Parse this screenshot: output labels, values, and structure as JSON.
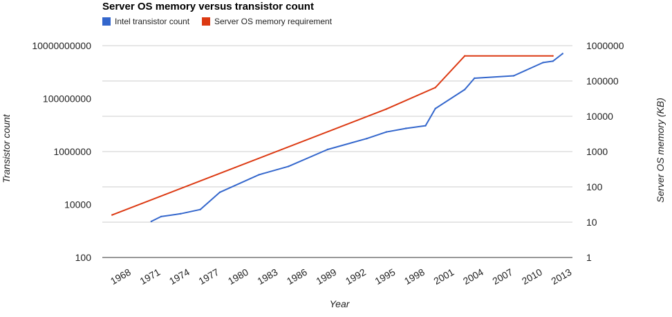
{
  "chart_data": {
    "type": "line",
    "title": "Server OS memory versus transistor count",
    "xlabel": "Year",
    "ylabel_left": "Transistor count",
    "ylabel_right": "Server OS memory (KB)",
    "x_tick_labels": [
      "1968",
      "1971",
      "1974",
      "1977",
      "1980",
      "1983",
      "1986",
      "1989",
      "1992",
      "1995",
      "1998",
      "2001",
      "2004",
      "2007",
      "2010",
      "2013"
    ],
    "x_range": [
      1966,
      2014
    ],
    "y_left": {
      "scale": "log",
      "range": [
        100,
        10000000000
      ],
      "tick_labels": [
        "100",
        "10000",
        "1000000",
        "100000000",
        "10000000000"
      ]
    },
    "y_right": {
      "scale": "log",
      "range": [
        1,
        1000000
      ],
      "tick_labels": [
        "1",
        "10",
        "100",
        "1000",
        "10000",
        "100000",
        "1000000"
      ]
    },
    "grid": true,
    "legend_position": "top",
    "series": [
      {
        "name": "Intel transistor count",
        "axis": "left",
        "color": "#3366cc",
        "points": [
          [
            1971,
            2300
          ],
          [
            1972,
            3500
          ],
          [
            1974,
            4500
          ],
          [
            1976,
            6500
          ],
          [
            1978,
            29000
          ],
          [
            1982,
            134000
          ],
          [
            1985,
            275000
          ],
          [
            1989,
            1200000
          ],
          [
            1993,
            3100000
          ],
          [
            1995,
            5500000
          ],
          [
            1997,
            7500000
          ],
          [
            1999,
            9500000
          ],
          [
            2000,
            42000000
          ],
          [
            2003,
            220000000
          ],
          [
            2004,
            592000000
          ],
          [
            2008,
            731000000
          ],
          [
            2011,
            2300000000
          ],
          [
            2012,
            2600000000
          ],
          [
            2013,
            5000000000
          ]
        ]
      },
      {
        "name": "Server OS memory requirement",
        "axis": "right",
        "color": "#dc3912",
        "points": [
          [
            1967,
            16
          ],
          [
            1995,
            16000
          ],
          [
            2000,
            65000
          ],
          [
            2003,
            512000
          ],
          [
            2012,
            512000
          ]
        ]
      }
    ]
  }
}
